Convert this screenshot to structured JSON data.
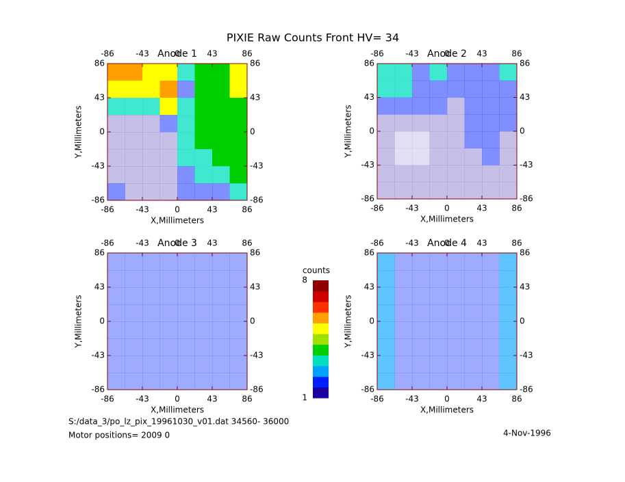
{
  "title": "PIXIE Raw Counts Front HV= 34",
  "footer": {
    "file": "S:/data_3/po_lz_pix_19961030_v01.dat   34560- 36000",
    "motor": "Motor positions= 2009 0",
    "date": "4-Nov-1996"
  },
  "colorbar": {
    "label": "counts",
    "lim": [
      1,
      8
    ],
    "ticks": [
      1,
      8
    ],
    "colors": [
      "#1a00a0",
      "#0020ff",
      "#00a0ff",
      "#00e0c0",
      "#00d000",
      "#a0e000",
      "#ffff00",
      "#ffa000",
      "#ff3000",
      "#d00000",
      "#900000"
    ]
  },
  "chart_data": [
    {
      "type": "heatmap",
      "title": "Anode 1",
      "xlabel": "X,Millimeters",
      "ylabel": "Y,Millimeters",
      "xlim": [
        -86,
        86
      ],
      "ylim": [
        -86,
        86
      ],
      "xticks": [
        -86,
        -43,
        0,
        43,
        86
      ],
      "yticks": [
        -86,
        -43,
        0,
        43,
        86
      ],
      "values": [
        [
          6,
          6,
          5,
          5,
          3,
          4,
          4,
          5
        ],
        [
          5,
          5,
          5,
          6,
          2,
          4,
          4,
          5
        ],
        [
          3,
          3,
          3,
          5,
          3,
          4,
          4,
          4
        ],
        [
          1,
          1,
          1,
          2,
          3,
          4,
          4,
          4
        ],
        [
          1,
          1,
          1,
          1,
          3,
          4,
          4,
          4
        ],
        [
          1,
          1,
          1,
          1,
          3,
          3,
          4,
          4
        ],
        [
          1,
          1,
          1,
          1,
          2,
          3,
          3,
          4
        ],
        [
          2,
          1,
          1,
          1,
          2,
          2,
          2,
          3
        ]
      ]
    },
    {
      "type": "heatmap",
      "title": "Anode 2",
      "xlabel": "X,Millimeters",
      "ylabel": "Y,Millimeters",
      "xlim": [
        -86,
        86
      ],
      "ylim": [
        -86,
        86
      ],
      "xticks": [
        -86,
        -43,
        0,
        43,
        86
      ],
      "yticks": [
        -86,
        -43,
        0,
        43,
        86
      ],
      "values": [
        [
          3,
          3,
          2,
          3,
          2,
          2,
          2,
          3
        ],
        [
          3,
          3,
          2,
          2,
          2,
          2,
          2,
          2
        ],
        [
          2,
          2,
          2,
          2,
          1,
          2,
          2,
          2
        ],
        [
          1,
          1,
          1,
          1,
          1,
          2,
          2,
          2
        ],
        [
          1,
          0.5,
          0.5,
          1,
          1,
          2,
          2,
          1
        ],
        [
          1,
          0.5,
          0.5,
          1,
          1,
          1,
          2,
          1
        ],
        [
          1,
          1,
          1,
          1,
          1,
          1,
          1,
          1
        ],
        [
          1,
          1,
          1,
          1,
          1,
          1,
          1,
          1
        ]
      ]
    },
    {
      "type": "heatmap",
      "title": "Anode 3",
      "xlabel": "X,Millimeters",
      "ylabel": "Y,Millimeters",
      "xlim": [
        -86,
        86
      ],
      "ylim": [
        -86,
        86
      ],
      "xticks": [
        -86,
        -43,
        0,
        43,
        86
      ],
      "yticks": [
        -86,
        -43,
        0,
        43,
        86
      ],
      "values": [
        [
          1.5,
          1.5,
          1.5,
          1.5,
          1.5,
          1.5,
          1.5,
          1.5
        ],
        [
          1.5,
          1.5,
          1.5,
          1.5,
          1.5,
          1.5,
          1.5,
          1.5
        ],
        [
          1.5,
          1.5,
          1.5,
          1.5,
          1.5,
          1.5,
          1.5,
          1.5
        ],
        [
          1.5,
          1.5,
          1.5,
          1.5,
          1.5,
          1.5,
          1.5,
          1.5
        ],
        [
          1.5,
          1.5,
          1.5,
          1.5,
          1.5,
          1.5,
          1.5,
          1.5
        ],
        [
          1.5,
          1.5,
          1.5,
          1.5,
          1.5,
          1.5,
          1.5,
          1.5
        ],
        [
          1.5,
          1.5,
          1.5,
          1.5,
          1.5,
          1.5,
          1.5,
          1.5
        ],
        [
          1.5,
          1.5,
          1.5,
          1.5,
          1.5,
          1.5,
          1.5,
          1.5
        ]
      ]
    },
    {
      "type": "heatmap",
      "title": "Anode 4",
      "xlabel": "X,Millimeters",
      "ylabel": "Y,Millimeters",
      "xlim": [
        -86,
        86
      ],
      "ylim": [
        -86,
        86
      ],
      "xticks": [
        -86,
        -43,
        0,
        43,
        86
      ],
      "yticks": [
        -86,
        -43,
        0,
        43,
        86
      ],
      "values": [
        [
          2.5,
          1.5,
          1.5,
          1.5,
          1.5,
          1.5,
          1.5,
          2.5
        ],
        [
          2.5,
          1.5,
          1.5,
          1.5,
          1.5,
          1.5,
          1.5,
          2.5
        ],
        [
          2.5,
          1.5,
          1.5,
          1.5,
          1.5,
          1.5,
          1.5,
          2.5
        ],
        [
          2.5,
          1.5,
          1.5,
          1.5,
          1.5,
          1.5,
          1.5,
          2.5
        ],
        [
          2.5,
          1.5,
          1.5,
          1.5,
          1.5,
          1.5,
          1.5,
          2.5
        ],
        [
          2.5,
          1.5,
          1.5,
          1.5,
          1.5,
          1.5,
          1.5,
          2.5
        ],
        [
          2.5,
          1.5,
          1.5,
          1.5,
          1.5,
          1.5,
          1.5,
          2.5
        ],
        [
          2.5,
          1.5,
          1.5,
          1.5,
          1.5,
          1.5,
          1.5,
          2.5
        ]
      ]
    }
  ]
}
